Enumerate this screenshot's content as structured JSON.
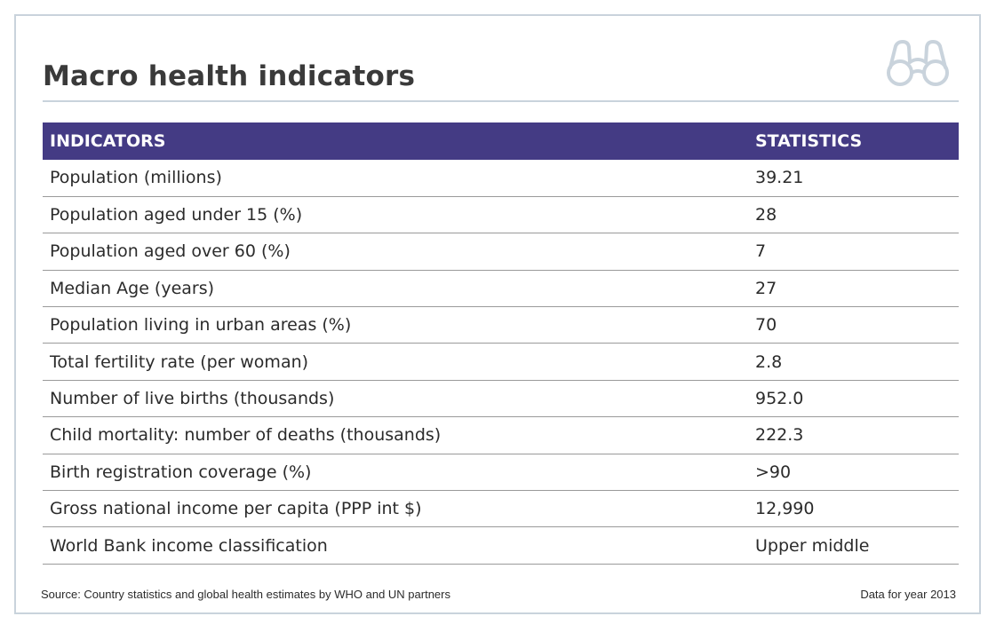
{
  "title": "Macro health indicators",
  "icon": "binoculars-icon",
  "colors": {
    "header_background": "#443b84",
    "header_text": "#ffffff",
    "border": "#c9d3dc",
    "icon": "#c9d3dc"
  },
  "table": {
    "headers": {
      "indicator": "INDICATORS",
      "statistic": "STATISTICS"
    },
    "rows": [
      {
        "indicator": "Population (millions)",
        "statistic": "39.21"
      },
      {
        "indicator": "Population aged under 15 (%)",
        "statistic": "28"
      },
      {
        "indicator": "Population aged over 60 (%)",
        "statistic": "7"
      },
      {
        "indicator": "Median Age (years)",
        "statistic": "27"
      },
      {
        "indicator": "Population living in urban areas (%)",
        "statistic": "70"
      },
      {
        "indicator": "Total fertility rate (per woman)",
        "statistic": "2.8"
      },
      {
        "indicator": "Number of live births (thousands)",
        "statistic": "952.0"
      },
      {
        "indicator": "Child mortality: number of deaths (thousands)",
        "statistic": "222.3"
      },
      {
        "indicator": "Birth registration coverage (%)",
        "statistic": ">90"
      },
      {
        "indicator": "Gross national income per capita (PPP int $)",
        "statistic": "12,990"
      },
      {
        "indicator": "World Bank income classification",
        "statistic": "Upper middle"
      }
    ]
  },
  "footer": {
    "source": "Source: Country statistics and global health estimates by WHO and UN partners",
    "year": "Data for year 2013"
  }
}
